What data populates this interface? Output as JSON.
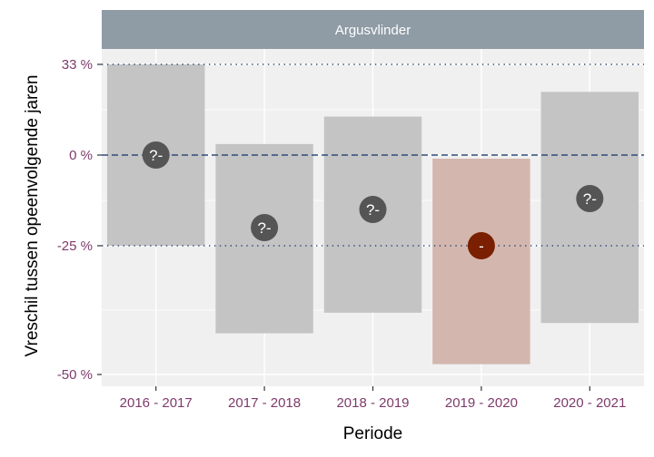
{
  "chart_data": {
    "type": "bar",
    "panel_title": "Argusvlinder",
    "xlabel": "Periode",
    "ylabel": "Vreschil tussen opeenvolgende jaren",
    "categories": [
      "2016 - 2017",
      "2017 - 2018",
      "2018 - 2019",
      "2019 - 2020",
      "2020 - 2021"
    ],
    "y_ticks": [
      {
        "value": 33,
        "label": "33 %"
      },
      {
        "value": 0,
        "label": "0 %"
      },
      {
        "value": -25,
        "label": "-25 %"
      },
      {
        "value": -50,
        "label": "-50 %"
      }
    ],
    "reference_lines": [
      {
        "value": 33,
        "style": "dotted"
      },
      {
        "value": 0,
        "style": "dashed"
      },
      {
        "value": -25,
        "style": "dotted"
      }
    ],
    "series": [
      {
        "points": [
          {
            "category": "2016 - 2017",
            "estimate": 0,
            "lower": -25,
            "upper": 33,
            "marker": "?-",
            "significant": false
          },
          {
            "category": "2017 - 2018",
            "estimate": -20,
            "lower": -42,
            "upper": 4,
            "marker": "?-",
            "significant": false
          },
          {
            "category": "2018 - 2019",
            "estimate": -15,
            "lower": -38,
            "upper": 14,
            "marker": "?-",
            "significant": false
          },
          {
            "category": "2019 - 2020",
            "estimate": -25,
            "lower": -48,
            "upper": -1,
            "marker": "-",
            "significant": true
          },
          {
            "category": "2020 - 2021",
            "estimate": -12,
            "lower": -40,
            "upper": 23,
            "marker": "?-",
            "significant": false
          }
        ]
      }
    ],
    "colors": {
      "strip": "#8f9ba5",
      "panel": "#f0f0f0",
      "grid": "#ffffff",
      "interval": "#c4c4c4",
      "interval_significant": "#d3b7ae",
      "marker": "#555555",
      "marker_significant": "#7a1f00",
      "reference_line": "#2f4b7c",
      "tick_label": "#7e3a6b"
    },
    "grid": true,
    "legend": "none"
  }
}
